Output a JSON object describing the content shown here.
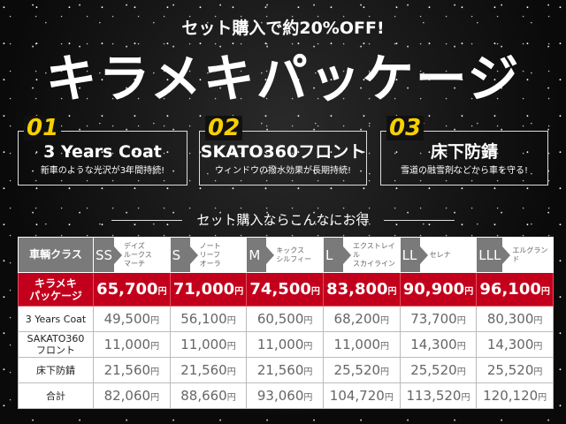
{
  "header": {
    "subtitle": "セット購入で約20%OFF!",
    "title": "キラメキパッケージ"
  },
  "features": [
    {
      "num": "01",
      "title": "3 Years Coat",
      "desc": "新車のような光沢が3年間持続!"
    },
    {
      "num": "02",
      "title": "SKATO360フロント",
      "desc": "ウィンドウの撥水効果が長期持続!"
    },
    {
      "num": "03",
      "title": "床下防錆",
      "desc": "雪道の融雪剤などから車を守る!"
    }
  ],
  "section_title": "セット購入ならこんなにお得",
  "table": {
    "header_label": "車輌クラス",
    "currency": "円",
    "classes": [
      {
        "code": "SS",
        "models": "デイズ\nルークス\nマーチ"
      },
      {
        "code": "S",
        "models": "ノート\nリーフ\nオーラ"
      },
      {
        "code": "M",
        "models": "キックス\nシルフィー"
      },
      {
        "code": "L",
        "models": "エクストレイル\nスカイライン"
      },
      {
        "code": "LL",
        "models": "セレナ"
      },
      {
        "code": "LLL",
        "models": "エルグランド"
      }
    ],
    "package_row": {
      "label": "キラメキ\nパッケージ",
      "values": [
        "65,700",
        "71,000",
        "74,500",
        "83,800",
        "90,900",
        "96,100"
      ]
    },
    "rows": [
      {
        "label": "3 Years Coat",
        "values": [
          "49,500",
          "56,100",
          "60,500",
          "68,200",
          "73,700",
          "80,300"
        ]
      },
      {
        "label": "SAKATO360\nフロント",
        "values": [
          "11,000",
          "11,000",
          "11,000",
          "11,000",
          "14,300",
          "14,300"
        ]
      },
      {
        "label": "床下防錆",
        "values": [
          "21,560",
          "21,560",
          "21,560",
          "25,520",
          "25,520",
          "25,520"
        ]
      },
      {
        "label": "合計",
        "values": [
          "82,060",
          "88,660",
          "93,060",
          "104,720",
          "113,520",
          "120,120"
        ]
      }
    ]
  },
  "colors": {
    "accent_red": "#c3001c",
    "number_yellow": "#f7d000",
    "header_gray": "#7a7a7a"
  }
}
